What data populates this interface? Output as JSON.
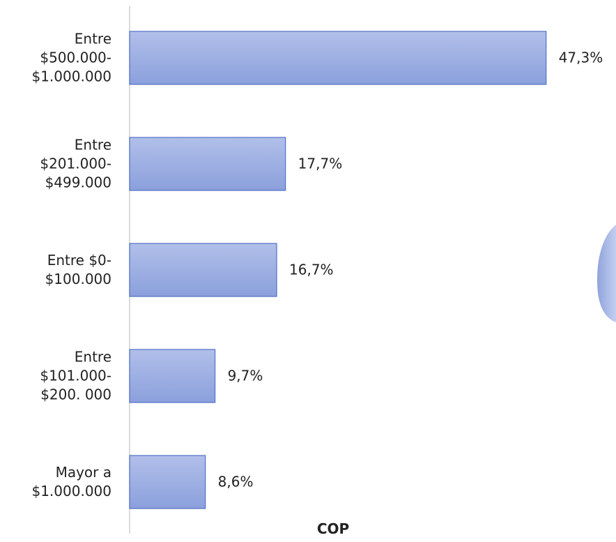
{
  "chart_data": {
    "type": "barh",
    "x_label": "COP",
    "categories": [
      "Entre\n$500.000-\n$1.000.000",
      "Entre\n$201.000-\n$499.000",
      "Entre $0-\n$100.000",
      "Entre\n$101.000-\n$200. 000",
      "Mayor a\n$1.000.000"
    ],
    "values": [
      47.3,
      17.7,
      16.7,
      9.7,
      8.6
    ],
    "value_labels": [
      "47,3%",
      "17,7%",
      "16,7%",
      "9,7%",
      "8,6%"
    ],
    "color": "#9aaee2",
    "xlim": [
      0,
      55
    ]
  }
}
